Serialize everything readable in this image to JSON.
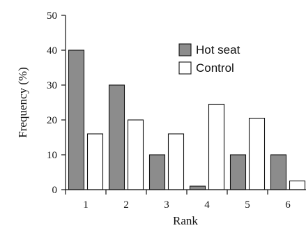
{
  "chart_data": {
    "type": "bar",
    "xlabel": "Rank",
    "ylabel": "Frequency (%)",
    "categories": [
      "1",
      "2",
      "3",
      "4",
      "5",
      "6"
    ],
    "series": [
      {
        "name": "Hot seat",
        "values": [
          40,
          30,
          10,
          1,
          10,
          10
        ],
        "color": "#8c8c8c"
      },
      {
        "name": "Control",
        "values": [
          16,
          20,
          16,
          24.5,
          20.5,
          2.5
        ],
        "color": "#ffffff"
      }
    ],
    "ylim": [
      0,
      50
    ],
    "yticks": [
      "0",
      "10",
      "20",
      "30",
      "40",
      "50"
    ],
    "grid": false,
    "legend_position": "top-right"
  }
}
